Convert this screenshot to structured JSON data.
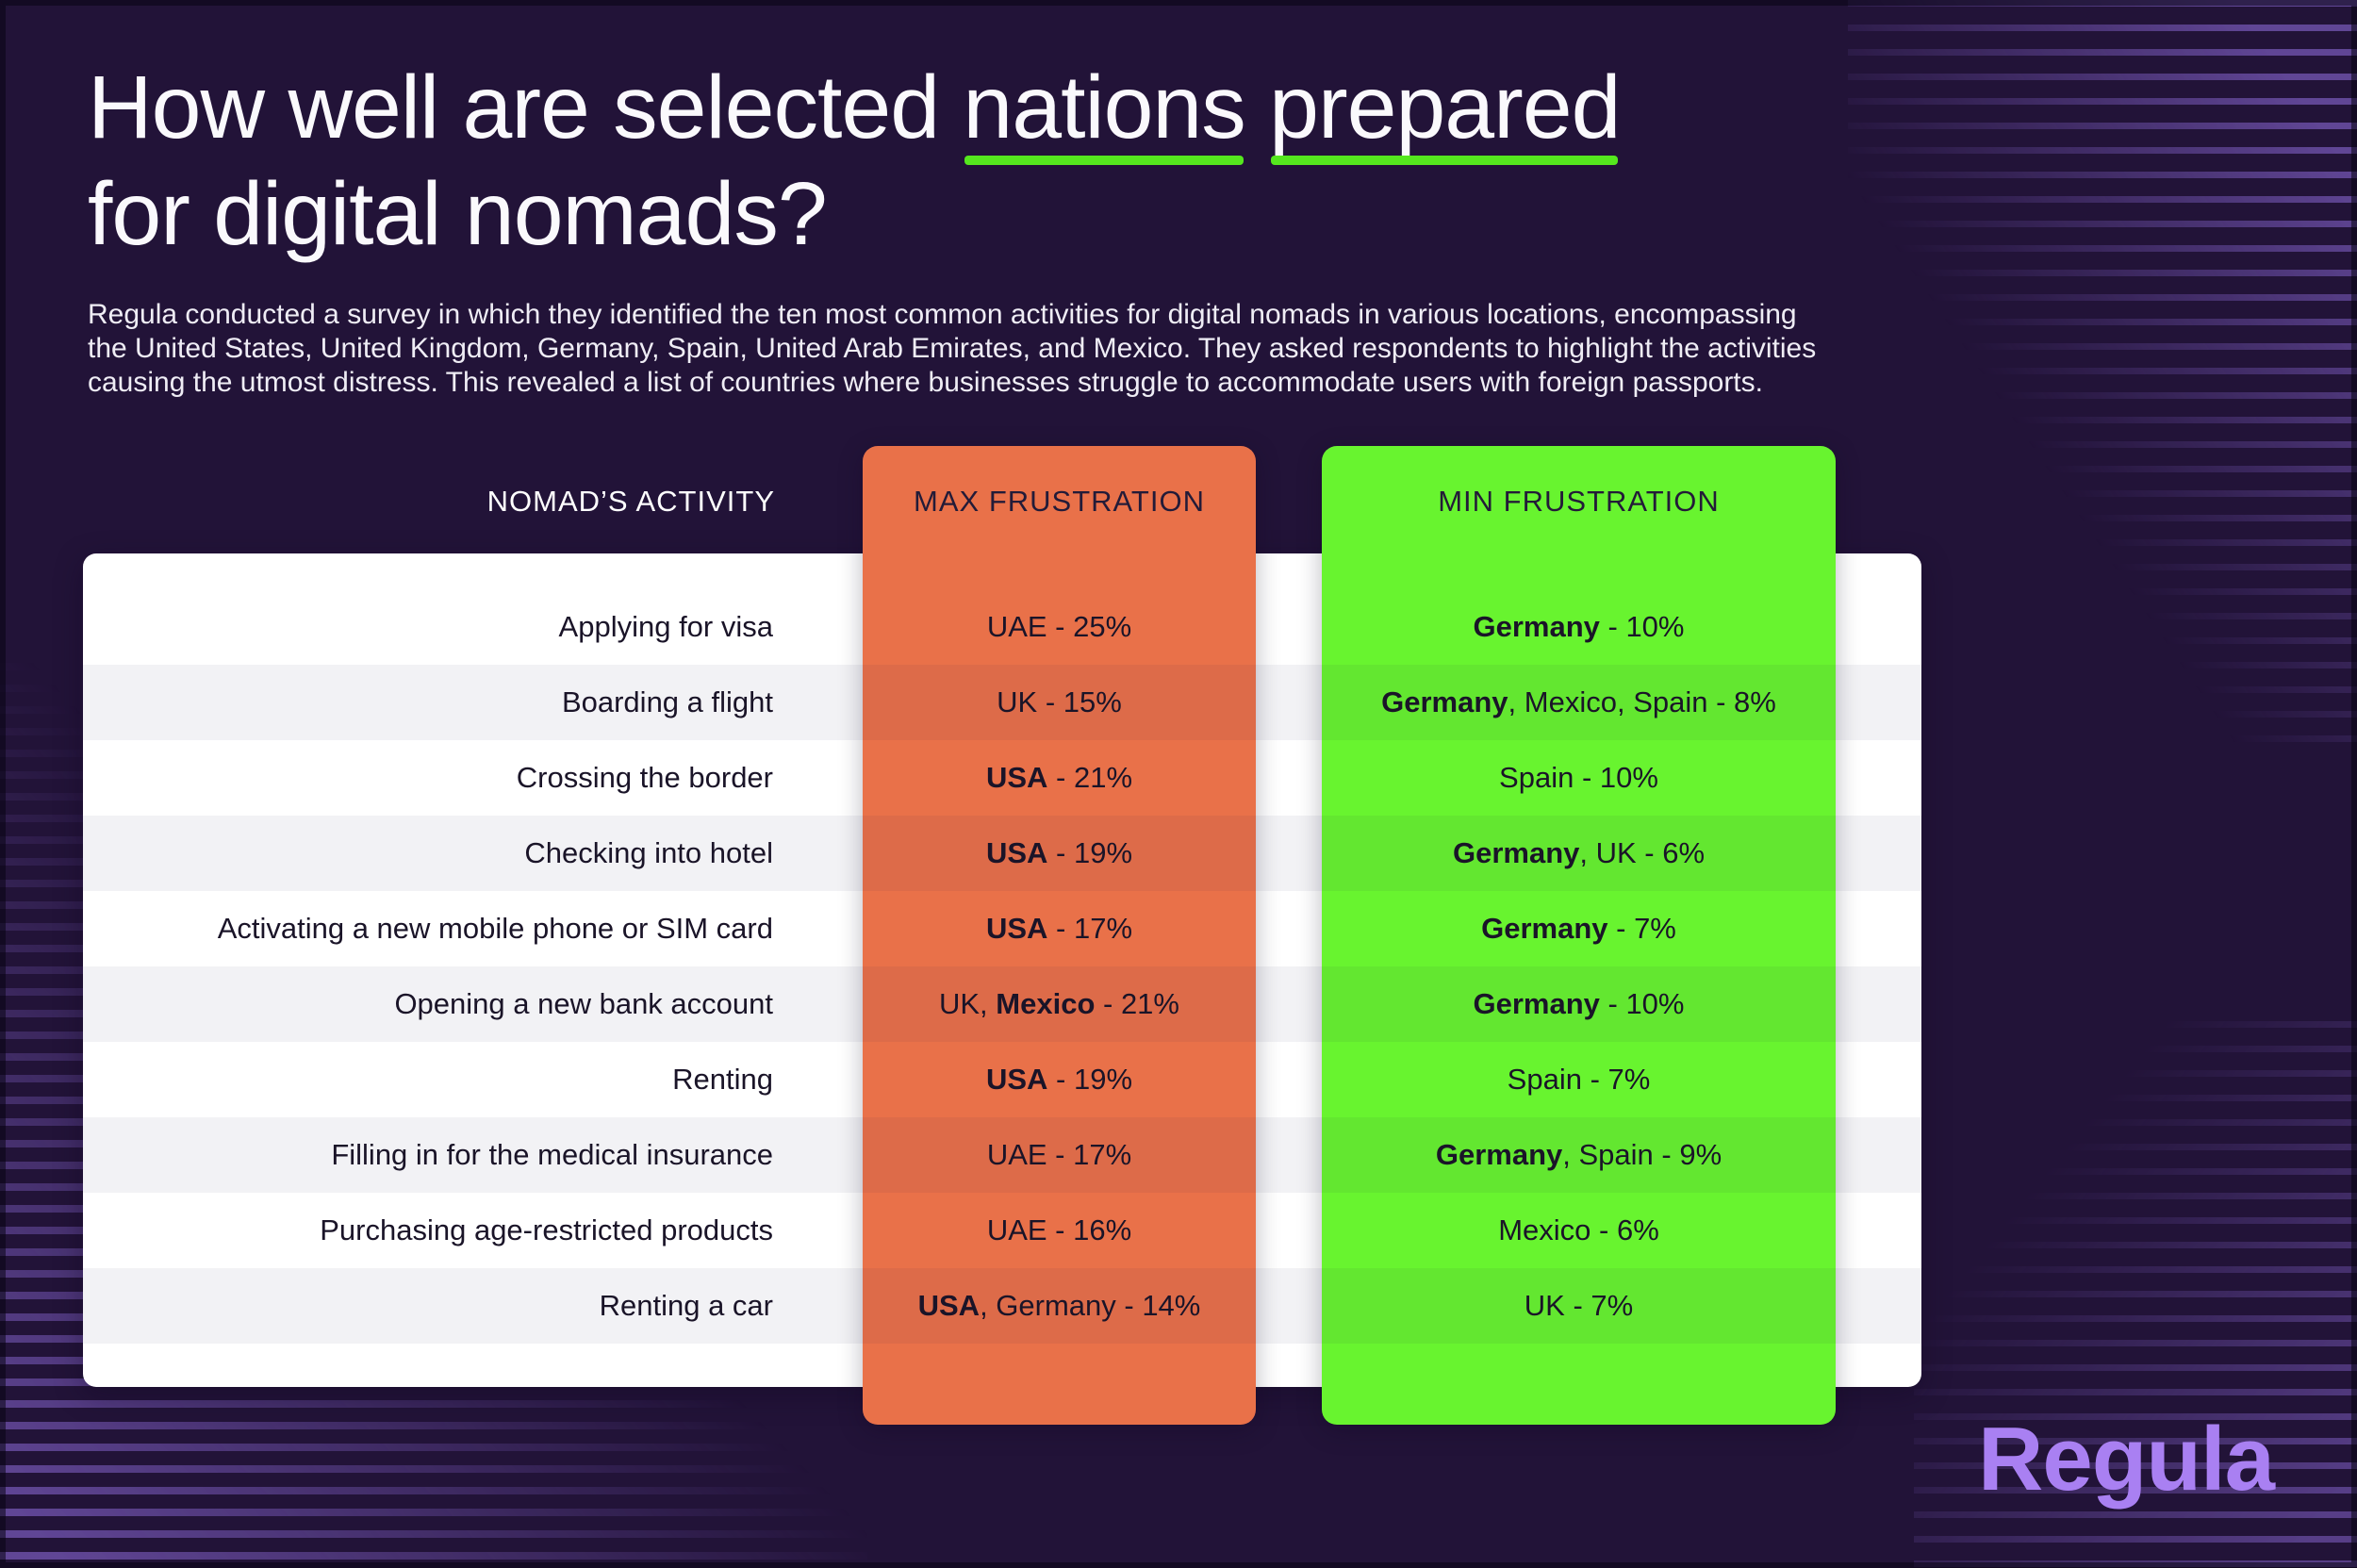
{
  "title": {
    "prefix": "How well are selected ",
    "underline1": "nations",
    "space": " ",
    "underline2": "prepared",
    "line2": "for digital nomads?"
  },
  "intro": {
    "line1": "Regula conducted a survey in which they identified the ten most common activities for digital nomads in various locations, encompassing",
    "line2": "the United States, United Kingdom, Germany, Spain, United Arab Emirates, and Mexico. They asked respondents to highlight the activities",
    "line3": "causing the utmost distress. This revealed a list of countries where businesses struggle to accommodate users with foreign passports."
  },
  "table": {
    "headers": {
      "activity": "NOMAD’S ACTIVITY",
      "max": "MAX FRUSTRATION",
      "min": "MIN FRUSTRATION"
    },
    "rows": [
      {
        "activity": "Applying for visa",
        "max": [
          {
            "t": "UAE - 25%",
            "b": false
          }
        ],
        "min": [
          {
            "t": "Germany",
            "b": true
          },
          {
            "t": " - 10%",
            "b": false
          }
        ]
      },
      {
        "activity": "Boarding a flight",
        "max": [
          {
            "t": "UK - 15%",
            "b": false
          }
        ],
        "min": [
          {
            "t": "Germany",
            "b": true
          },
          {
            "t": ", Mexico, Spain - 8%",
            "b": false
          }
        ]
      },
      {
        "activity": "Crossing the border",
        "max": [
          {
            "t": "USA",
            "b": true
          },
          {
            "t": " - 21%",
            "b": false
          }
        ],
        "min": [
          {
            "t": "Spain - 10%",
            "b": false
          }
        ]
      },
      {
        "activity": "Checking into hotel",
        "max": [
          {
            "t": "USA",
            "b": true
          },
          {
            "t": " - 19%",
            "b": false
          }
        ],
        "min": [
          {
            "t": "Germany",
            "b": true
          },
          {
            "t": ", UK - 6%",
            "b": false
          }
        ]
      },
      {
        "activity": "Activating a new mobile phone or SIM card",
        "max": [
          {
            "t": "USA",
            "b": true
          },
          {
            "t": " - 17%",
            "b": false
          }
        ],
        "min": [
          {
            "t": "Germany",
            "b": true
          },
          {
            "t": " - 7%",
            "b": false
          }
        ]
      },
      {
        "activity": "Opening a new bank account",
        "max": [
          {
            "t": "UK, ",
            "b": false
          },
          {
            "t": "Mexico",
            "b": true
          },
          {
            "t": " - 21%",
            "b": false
          }
        ],
        "min": [
          {
            "t": "Germany",
            "b": true
          },
          {
            "t": " - 10%",
            "b": false
          }
        ]
      },
      {
        "activity": "Renting",
        "max": [
          {
            "t": "USA",
            "b": true
          },
          {
            "t": " - 19%",
            "b": false
          }
        ],
        "min": [
          {
            "t": "Spain - 7%",
            "b": false
          }
        ]
      },
      {
        "activity": "Filling in for the medical insurance",
        "max": [
          {
            "t": "UAE - 17%",
            "b": false
          }
        ],
        "min": [
          {
            "t": "Germany",
            "b": true
          },
          {
            "t": ", Spain - 9%",
            "b": false
          }
        ]
      },
      {
        "activity": "Purchasing age-restricted products",
        "max": [
          {
            "t": "UAE - 16%",
            "b": false
          }
        ],
        "min": [
          {
            "t": "Mexico - 6%",
            "b": false
          }
        ]
      },
      {
        "activity": "Renting a car",
        "max": [
          {
            "t": "USA",
            "b": true
          },
          {
            "t": ", Germany - 14%",
            "b": false
          }
        ],
        "min": [
          {
            "t": "UK - 7%",
            "b": false
          }
        ]
      }
    ]
  },
  "logo": {
    "text": "Regula"
  },
  "colors": {
    "bg": "#221338",
    "orange": "#e97149",
    "green": "#68f42f",
    "underline": "#55e71e",
    "logo": "#a980f2",
    "text-dark": "#1a1428",
    "stripe": "rgba(148,112,226,0.55)"
  },
  "chart_data": {
    "type": "table",
    "title": "How well are selected nations prepared for digital nomads?",
    "columns": [
      "Nomad’s activity",
      "Max frustration",
      "Min frustration"
    ],
    "rows": [
      [
        "Applying for visa",
        "UAE - 25%",
        "Germany - 10%"
      ],
      [
        "Boarding a flight",
        "UK - 15%",
        "Germany, Mexico, Spain - 8%"
      ],
      [
        "Crossing the border",
        "USA - 21%",
        "Spain - 10%"
      ],
      [
        "Checking into hotel",
        "USA - 19%",
        "Germany, UK - 6%"
      ],
      [
        "Activating a new mobile phone or SIM card",
        "USA - 17%",
        "Germany - 7%"
      ],
      [
        "Opening a new bank account",
        "UK, Mexico - 21%",
        "Germany - 10%"
      ],
      [
        "Renting",
        "USA - 19%",
        "Spain - 7%"
      ],
      [
        "Filling in for the medical insurance",
        "UAE - 17%",
        "Germany, Spain - 9%"
      ],
      [
        "Purchasing age-restricted products",
        "UAE - 16%",
        "Mexico - 6%"
      ],
      [
        "Renting a car",
        "USA, Germany - 14%",
        "UK - 7%"
      ]
    ]
  }
}
